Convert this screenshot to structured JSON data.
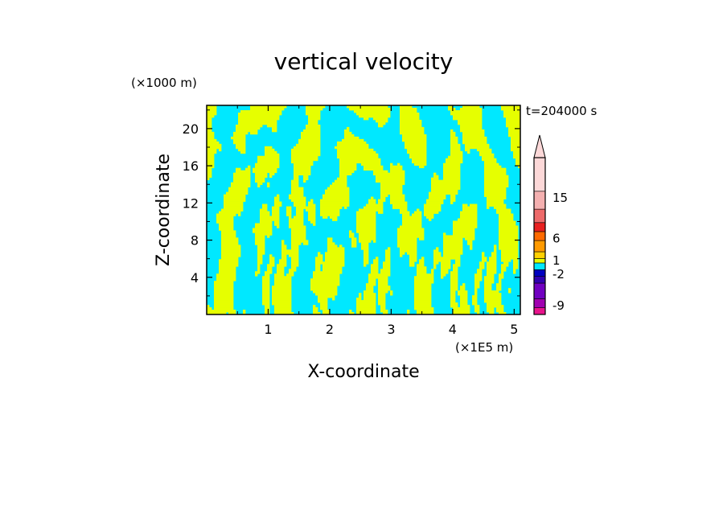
{
  "chart_data": {
    "type": "heatmap",
    "title": "vertical velocity",
    "xlabel": "X-coordinate",
    "ylabel": "Z-coordinate",
    "x_scale_label": "(×1E5 m)",
    "y_scale_label": "(×1000 m)",
    "time_label": "t=204000 s",
    "xlim": [
      0,
      5.1
    ],
    "ylim": [
      0,
      22.5
    ],
    "x_ticks": [
      "1",
      "2",
      "3",
      "4",
      "5"
    ],
    "y_ticks": [
      "4",
      "8",
      "12",
      "16",
      "20"
    ],
    "field_colors": {
      "positive": "#e6ff00",
      "negative": "#00e8ff",
      "background": "#00e8ff"
    },
    "colorbar": {
      "labels": [
        "15",
        "6",
        "1",
        "-2",
        "-9"
      ],
      "label_positions_value": [
        15,
        6,
        1,
        -2,
        -9
      ],
      "extend": "max",
      "colors": [
        "#e8148c",
        "#a000b0",
        "#7000c0",
        "#3000b0",
        "#0000c0",
        "#00e8ff",
        "#e6ff00",
        "#ffd000",
        "#ff9a00",
        "#ff6a00",
        "#e82020",
        "#ee6a6a",
        "#f4b0b0",
        "#fcd8d8"
      ]
    }
  }
}
